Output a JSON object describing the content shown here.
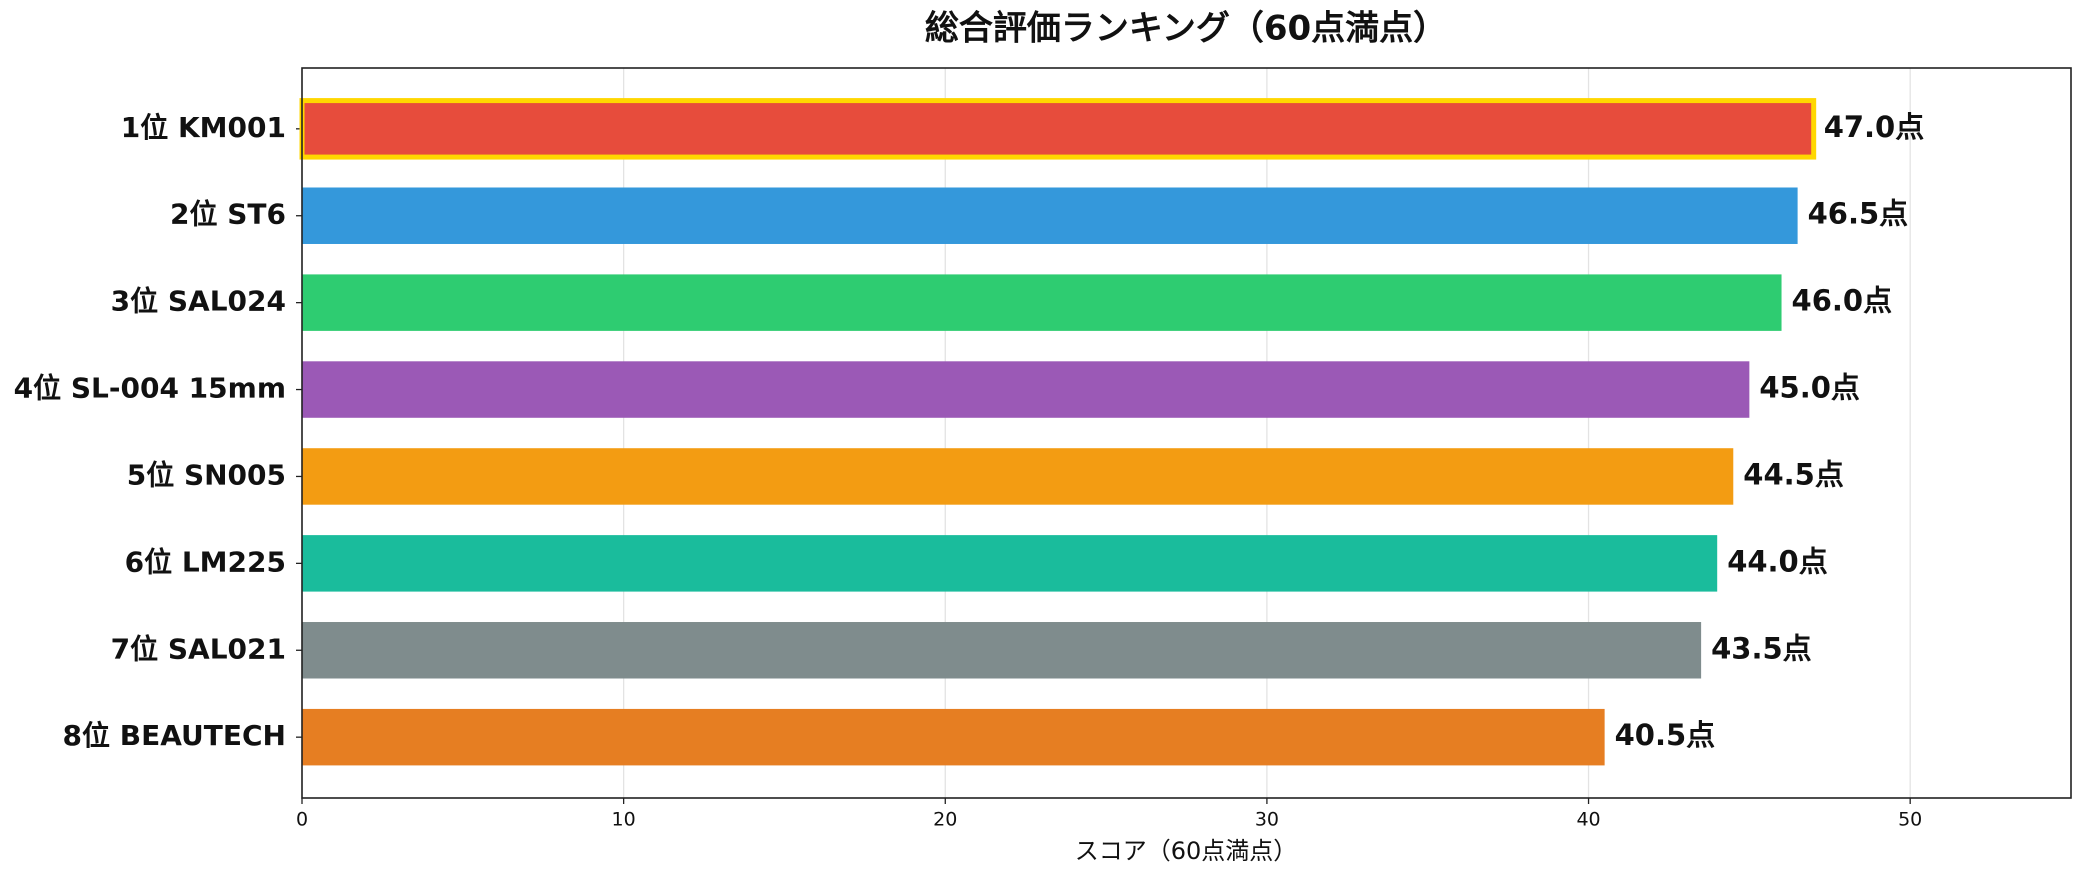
{
  "chart_data": {
    "type": "barh",
    "title": "総合評価ランキング（60点満点）",
    "x_label": "スコア（60点満点）",
    "categories": [
      "1位 KM001",
      "2位 ST6",
      "3位 SAL024",
      "4位 SL-004 15mm",
      "5位 SN005",
      "6位 LM225",
      "7位 SAL021",
      "8位 BEAUTECH"
    ],
    "values": [
      47.0,
      46.5,
      46.0,
      45.0,
      44.5,
      44.0,
      43.5,
      40.5
    ],
    "value_labels": [
      "47.0点",
      "46.5点",
      "46.0点",
      "45.0点",
      "44.5点",
      "44.0点",
      "43.5点",
      "40.5点"
    ],
    "colors": [
      "#e74c3c",
      "#3498db",
      "#2ecc71",
      "#9b59b6",
      "#f39c12",
      "#1abc9c",
      "#7f8c8d",
      "#e67e22"
    ],
    "highlight": {
      "index": 0,
      "color": "#ffd700"
    },
    "xlim": [
      0,
      55
    ],
    "xticks": [
      0,
      10,
      20,
      30,
      40,
      50
    ],
    "grid": true
  }
}
